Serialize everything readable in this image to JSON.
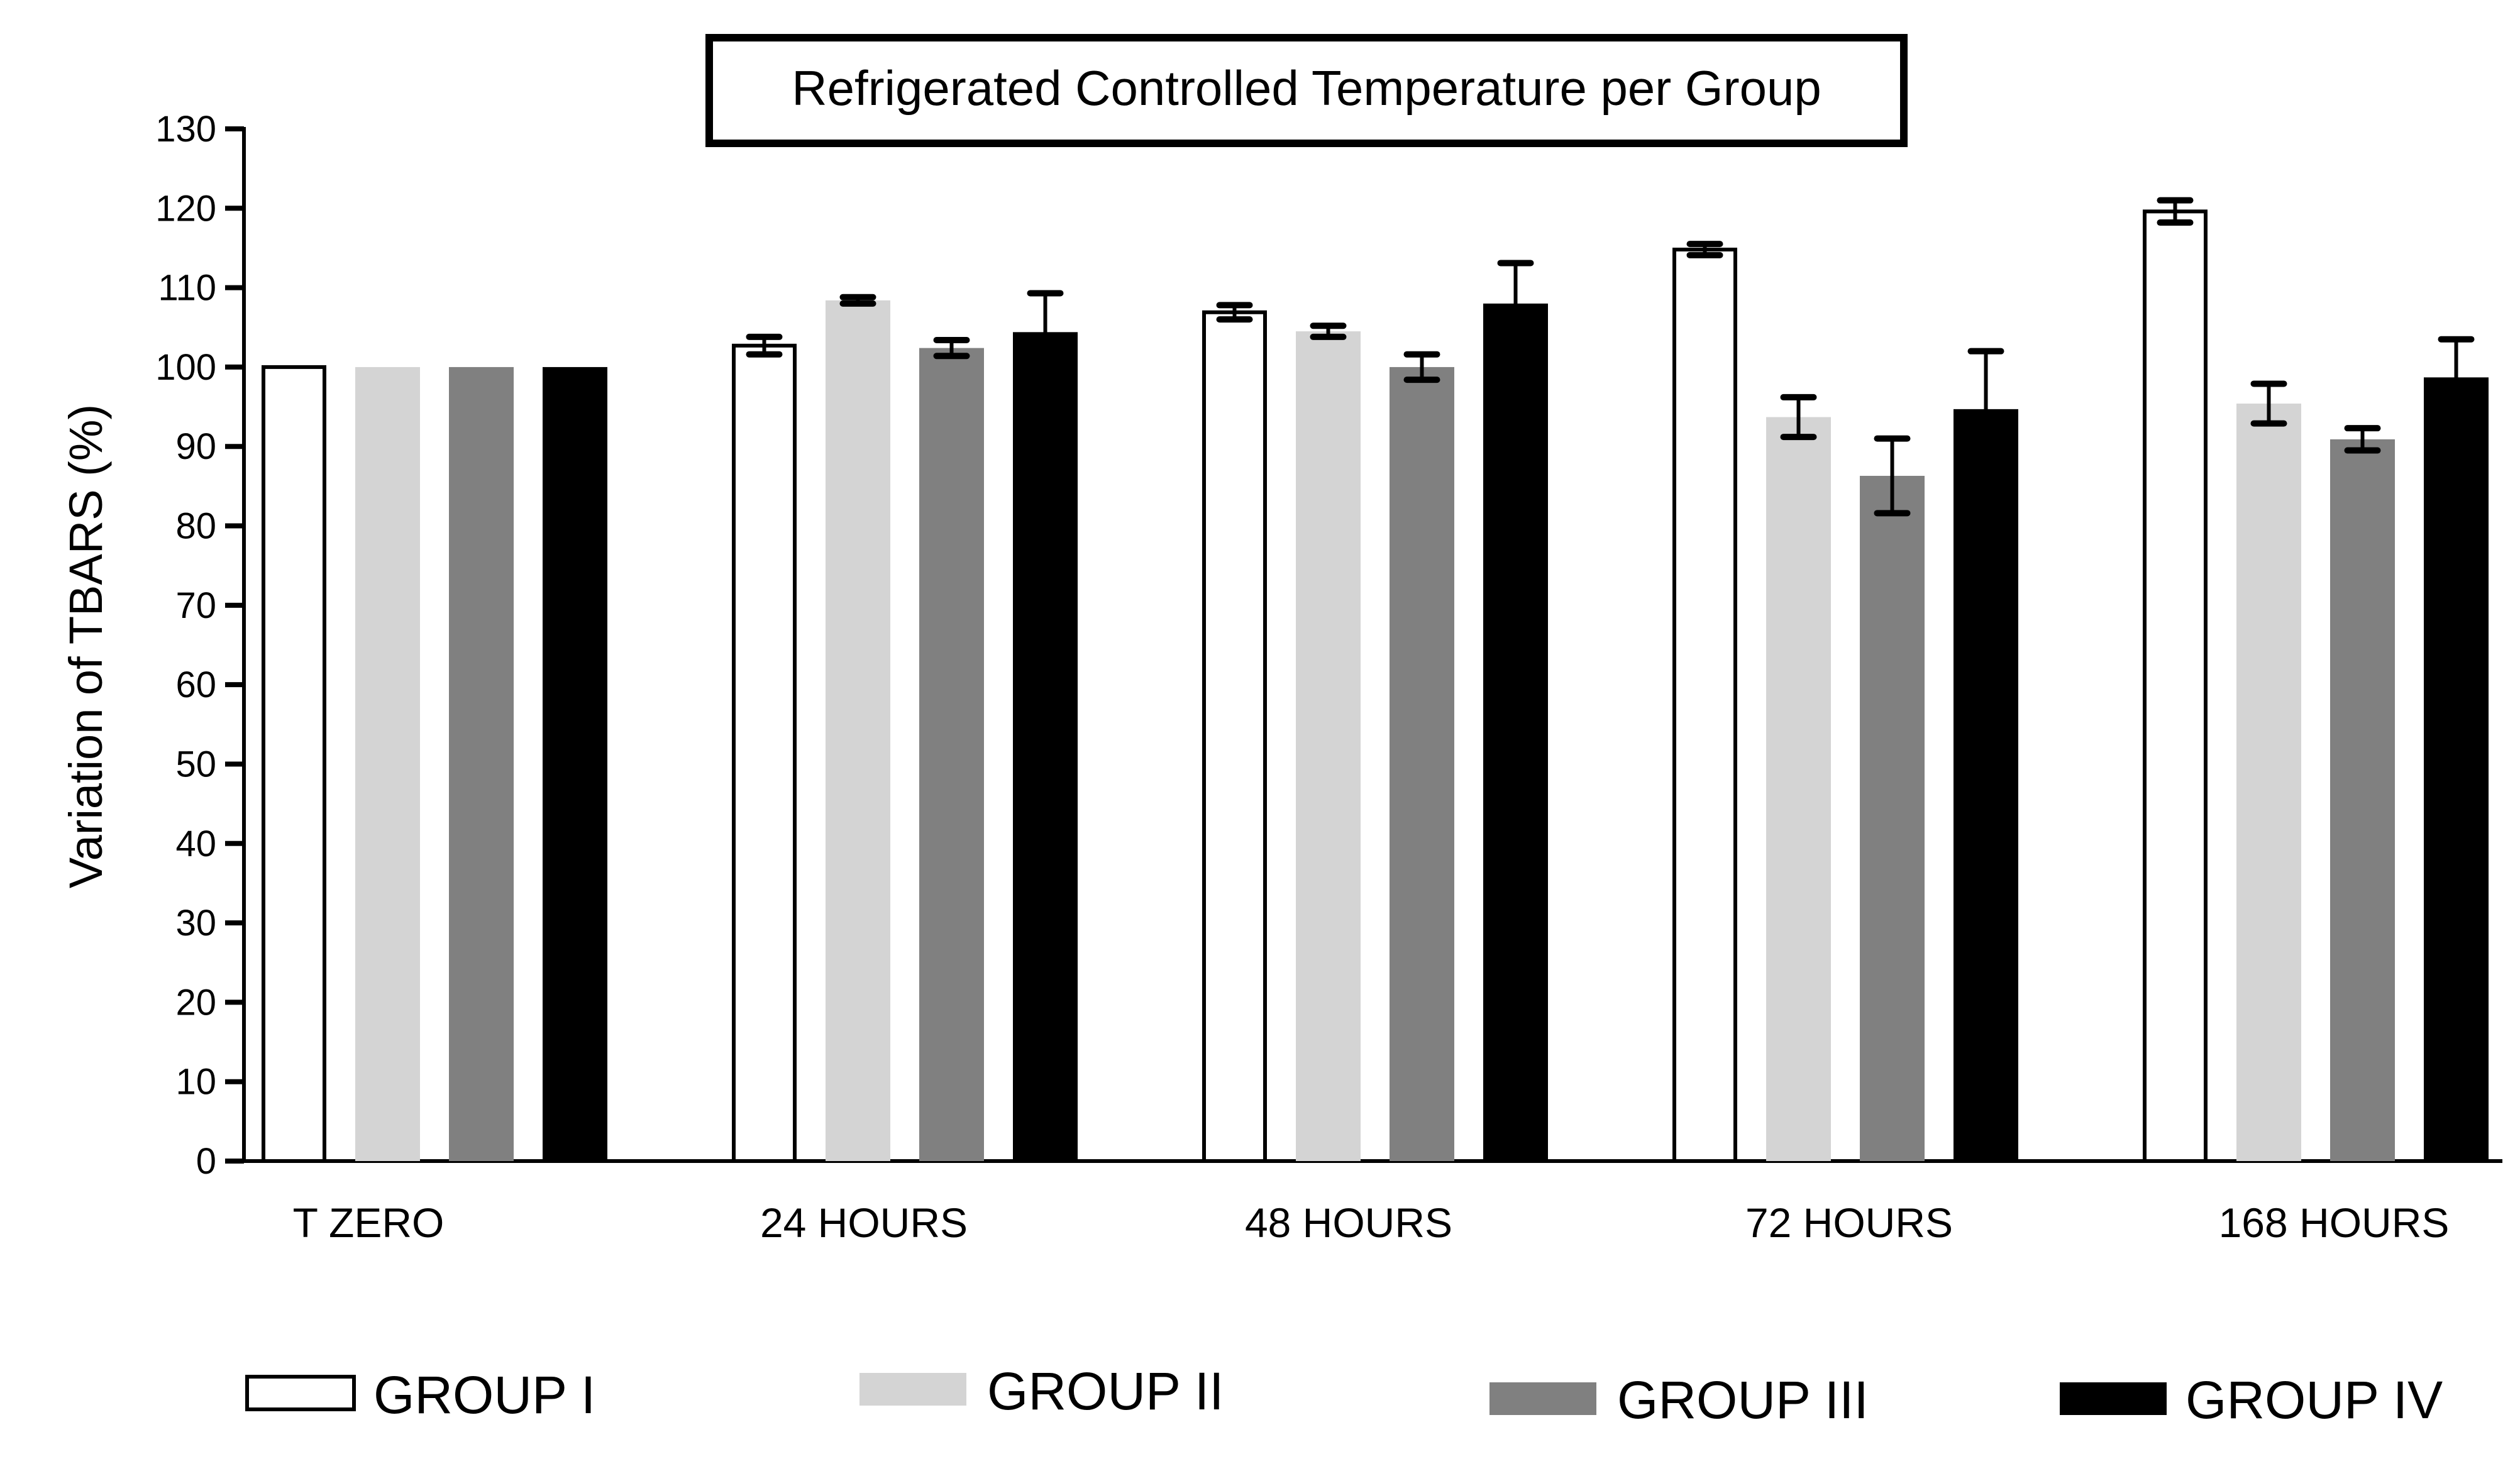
{
  "chart_data": {
    "type": "bar",
    "title": "Refrigerated Controlled Temperature per Group",
    "xlabel": "",
    "ylabel": "Variation of TBARS (%)",
    "ylim": [
      0,
      130
    ],
    "yticks": [
      0,
      10,
      20,
      30,
      40,
      50,
      60,
      70,
      80,
      90,
      100,
      110,
      120,
      130
    ],
    "grid": false,
    "legend_position": "bottom",
    "categories": [
      "T ZERO",
      "24 HOURS",
      "48 HOURS",
      "72 HOURS",
      "168 HOURS"
    ],
    "series": [
      {
        "name": "GROUP I",
        "color": "#ffffff",
        "values": [
          100,
          102.7,
          106.9,
          114.8,
          119.6
        ],
        "errors": [
          0,
          1.1,
          0.9,
          0.7,
          1.4
        ]
      },
      {
        "name": "GROUP II",
        "color": "#d4d4d4",
        "values": [
          100,
          108.4,
          104.5,
          93.7,
          95.4
        ],
        "errors": [
          0,
          0.4,
          0.7,
          2.5,
          2.5
        ]
      },
      {
        "name": "GROUP III",
        "color": "#808080",
        "values": [
          100,
          102.4,
          100.0,
          86.3,
          90.9
        ],
        "errors": [
          0,
          1.0,
          1.6,
          4.7,
          1.4
        ]
      },
      {
        "name": "GROUP IV",
        "color": "#000000",
        "values": [
          100,
          104.4,
          108.0,
          94.7,
          98.7
        ],
        "errors": [
          0,
          4.9,
          5.1,
          7.3,
          4.8
        ]
      }
    ]
  }
}
